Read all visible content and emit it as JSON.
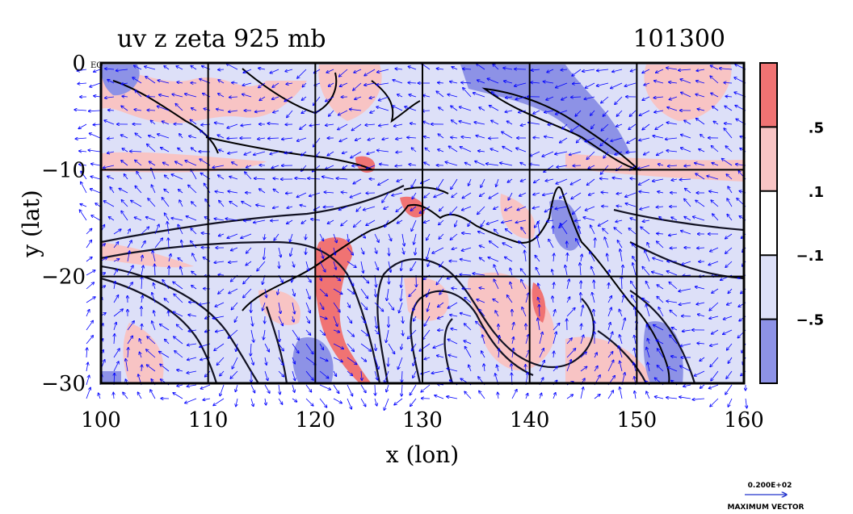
{
  "chart_data": {
    "type": "heatmap",
    "title": "uv z zeta 925 mb",
    "time_label": "101300",
    "xlabel": "x (lon)",
    "ylabel": "y (lat)",
    "xlim": [
      100,
      160
    ],
    "ylim": [
      -30,
      0
    ],
    "x_ticks": [
      {
        "value": 100,
        "label": "100"
      },
      {
        "value": 110,
        "label": "110"
      },
      {
        "value": 120,
        "label": "120"
      },
      {
        "value": 130,
        "label": "130"
      },
      {
        "value": 140,
        "label": "140"
      },
      {
        "value": 150,
        "label": "150"
      },
      {
        "value": 160,
        "label": "160"
      }
    ],
    "y_ticks": [
      {
        "value": 0,
        "label": "0"
      },
      {
        "value": -10,
        "label": "−10"
      },
      {
        "value": -20,
        "label": "−20"
      },
      {
        "value": -30,
        "label": "−30"
      }
    ],
    "corner_label": "EQ",
    "grid": true,
    "colorbar": {
      "position": "right",
      "colors": [
        "#f07373",
        "#f8c4c4",
        "#ffffff",
        "#dde0f8",
        "#8d92e6"
      ],
      "labels": [
        {
          "value": 0.5,
          "label": ".5"
        },
        {
          "value": 0.1,
          "label": ".1"
        },
        {
          "value": -0.1,
          "label": "−.1"
        },
        {
          "value": -0.5,
          "label": "−.5"
        }
      ]
    },
    "vector_legend": {
      "value_label": "0.200E+02",
      "caption": "MAXIMUM VECTOR"
    },
    "series": [
      {
        "name": "zeta",
        "kind": "shaded contours",
        "levels": [
          -0.5,
          -0.1,
          0.1,
          0.5
        ]
      },
      {
        "name": "z",
        "kind": "black contour lines"
      },
      {
        "name": "uv",
        "kind": "wind vectors",
        "color": "#0000ff"
      }
    ]
  }
}
